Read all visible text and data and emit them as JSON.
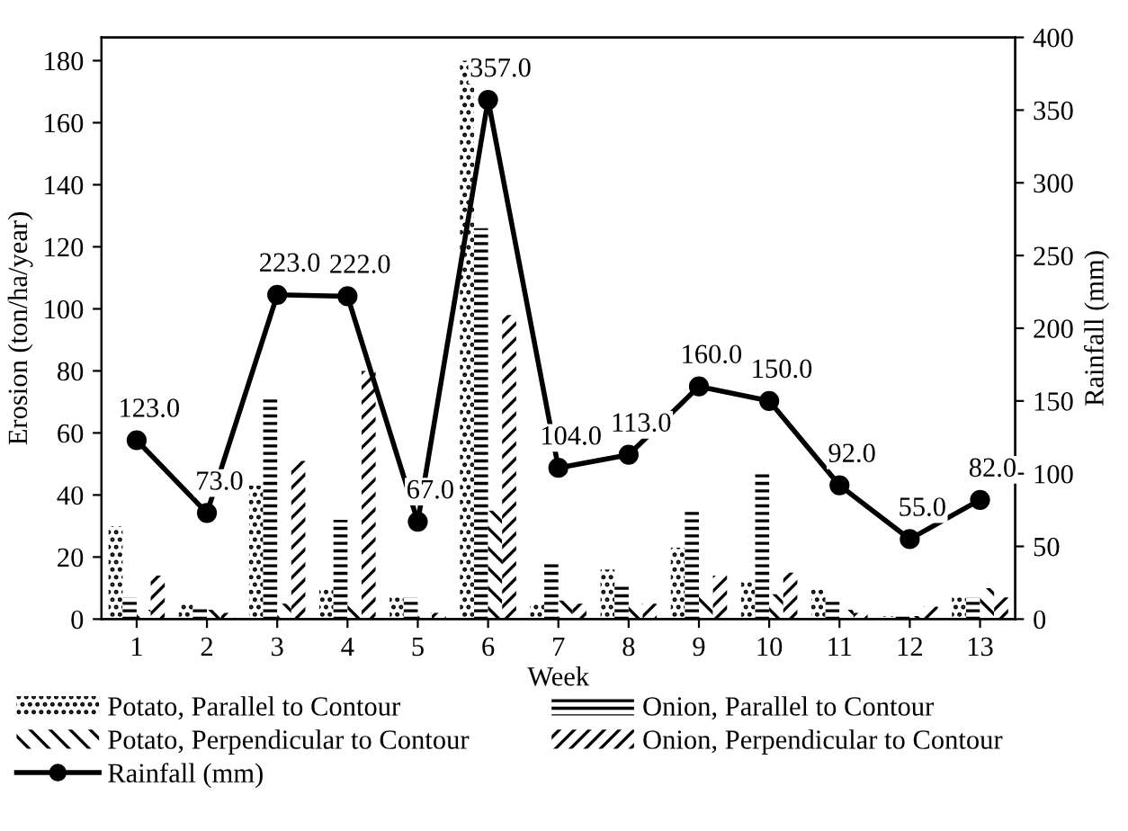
{
  "chart_data": {
    "type": "bar",
    "xlabel": "Week",
    "ylabel": "Erosion (ton/ha/year)",
    "y2label": "Rainfall (mm)",
    "categories": [
      "1",
      "2",
      "3",
      "4",
      "5",
      "6",
      "7",
      "8",
      "9",
      "10",
      "11",
      "12",
      "13"
    ],
    "series": [
      {
        "name": "Potato, Parallel to Contour",
        "color": "#000000",
        "values": [
          30,
          5,
          43,
          10,
          7,
          180,
          5,
          16,
          23,
          12,
          10,
          1,
          7
        ]
      },
      {
        "name": "Onion, Parallel to Contour",
        "color": "#000000",
        "values": [
          7,
          4,
          71,
          32,
          7,
          126,
          18,
          11,
          35,
          47,
          6,
          2,
          7
        ]
      },
      {
        "name": "Potato, Perpendicular to Contour",
        "color": "#000000",
        "values": [
          3,
          3,
          5,
          5,
          2,
          35,
          6,
          5,
          8,
          8,
          3,
          1,
          10
        ]
      },
      {
        "name": "Onion, Perpendicular to Contour",
        "color": "#000000",
        "values": [
          14,
          2,
          51,
          80,
          2,
          98,
          5,
          5,
          14,
          15,
          2,
          4,
          7
        ]
      },
      {
        "name": "Rainfall (mm)",
        "type": "line",
        "axis": "y2",
        "color": "#000000",
        "marker": "circle",
        "values": [
          123,
          73,
          223,
          222,
          67,
          357,
          104,
          113,
          160,
          150,
          92,
          55,
          82
        ],
        "value_labels": [
          "123.0",
          "73.0",
          "223.0",
          "222.0",
          "67.0",
          "357.0",
          "104.0",
          "113.0",
          "160.0",
          "150.0",
          "92.0",
          "55.0",
          "82.0"
        ]
      }
    ],
    "ylim": [
      0,
      187.5
    ],
    "yticks": [
      0,
      20,
      40,
      60,
      80,
      100,
      120,
      140,
      160,
      180
    ],
    "y2lim": [
      0,
      400
    ],
    "y2ticks": [
      0,
      50,
      100,
      150,
      200,
      250,
      300,
      350,
      400
    ],
    "grid": false,
    "legend": "bottom"
  }
}
